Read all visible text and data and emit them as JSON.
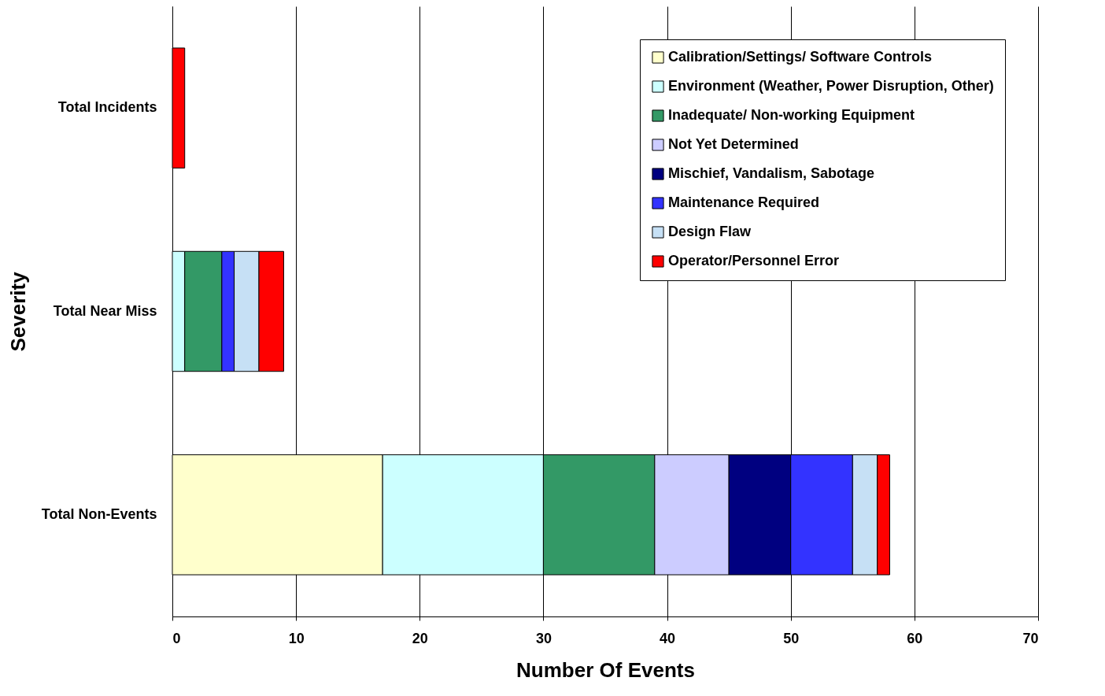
{
  "chart_data": {
    "type": "bar",
    "orientation": "horizontal",
    "stacked": true,
    "categories": [
      "Total Incidents",
      "Total Near Miss",
      "Total Non-Events"
    ],
    "series": [
      {
        "name": "Calibration/Settings/ Software Controls",
        "color": "#ffffcc",
        "values": [
          null,
          null,
          17
        ]
      },
      {
        "name": "Environment (Weather, Power Disruption, Other)",
        "color": "#ccffff",
        "values": [
          null,
          1,
          13
        ]
      },
      {
        "name": "Inadequate/ Non-working Equipment",
        "color": "#339966",
        "values": [
          null,
          3,
          9
        ]
      },
      {
        "name": "Not Yet Determined",
        "color": "#ccccff",
        "values": [
          null,
          null,
          6
        ]
      },
      {
        "name": "Mischief, Vandalism, Sabotage",
        "color": "#000080",
        "values": [
          null,
          null,
          5
        ]
      },
      {
        "name": "Maintenance Required",
        "color": "#3333ff",
        "values": [
          null,
          1,
          5
        ]
      },
      {
        "name": "Design Flaw",
        "color": "#c6e0f5",
        "values": [
          null,
          2,
          2
        ]
      },
      {
        "name": "Operator/Personnel Error",
        "color": "#ff0000",
        "values": [
          1,
          2,
          1
        ]
      }
    ],
    "xlim": [
      0,
      70
    ],
    "xticks": [
      0,
      10,
      20,
      30,
      40,
      50,
      60,
      70
    ],
    "xlabel": "Number Of Events",
    "ylabel": "Severity",
    "grid": "x",
    "legend": "top right"
  }
}
